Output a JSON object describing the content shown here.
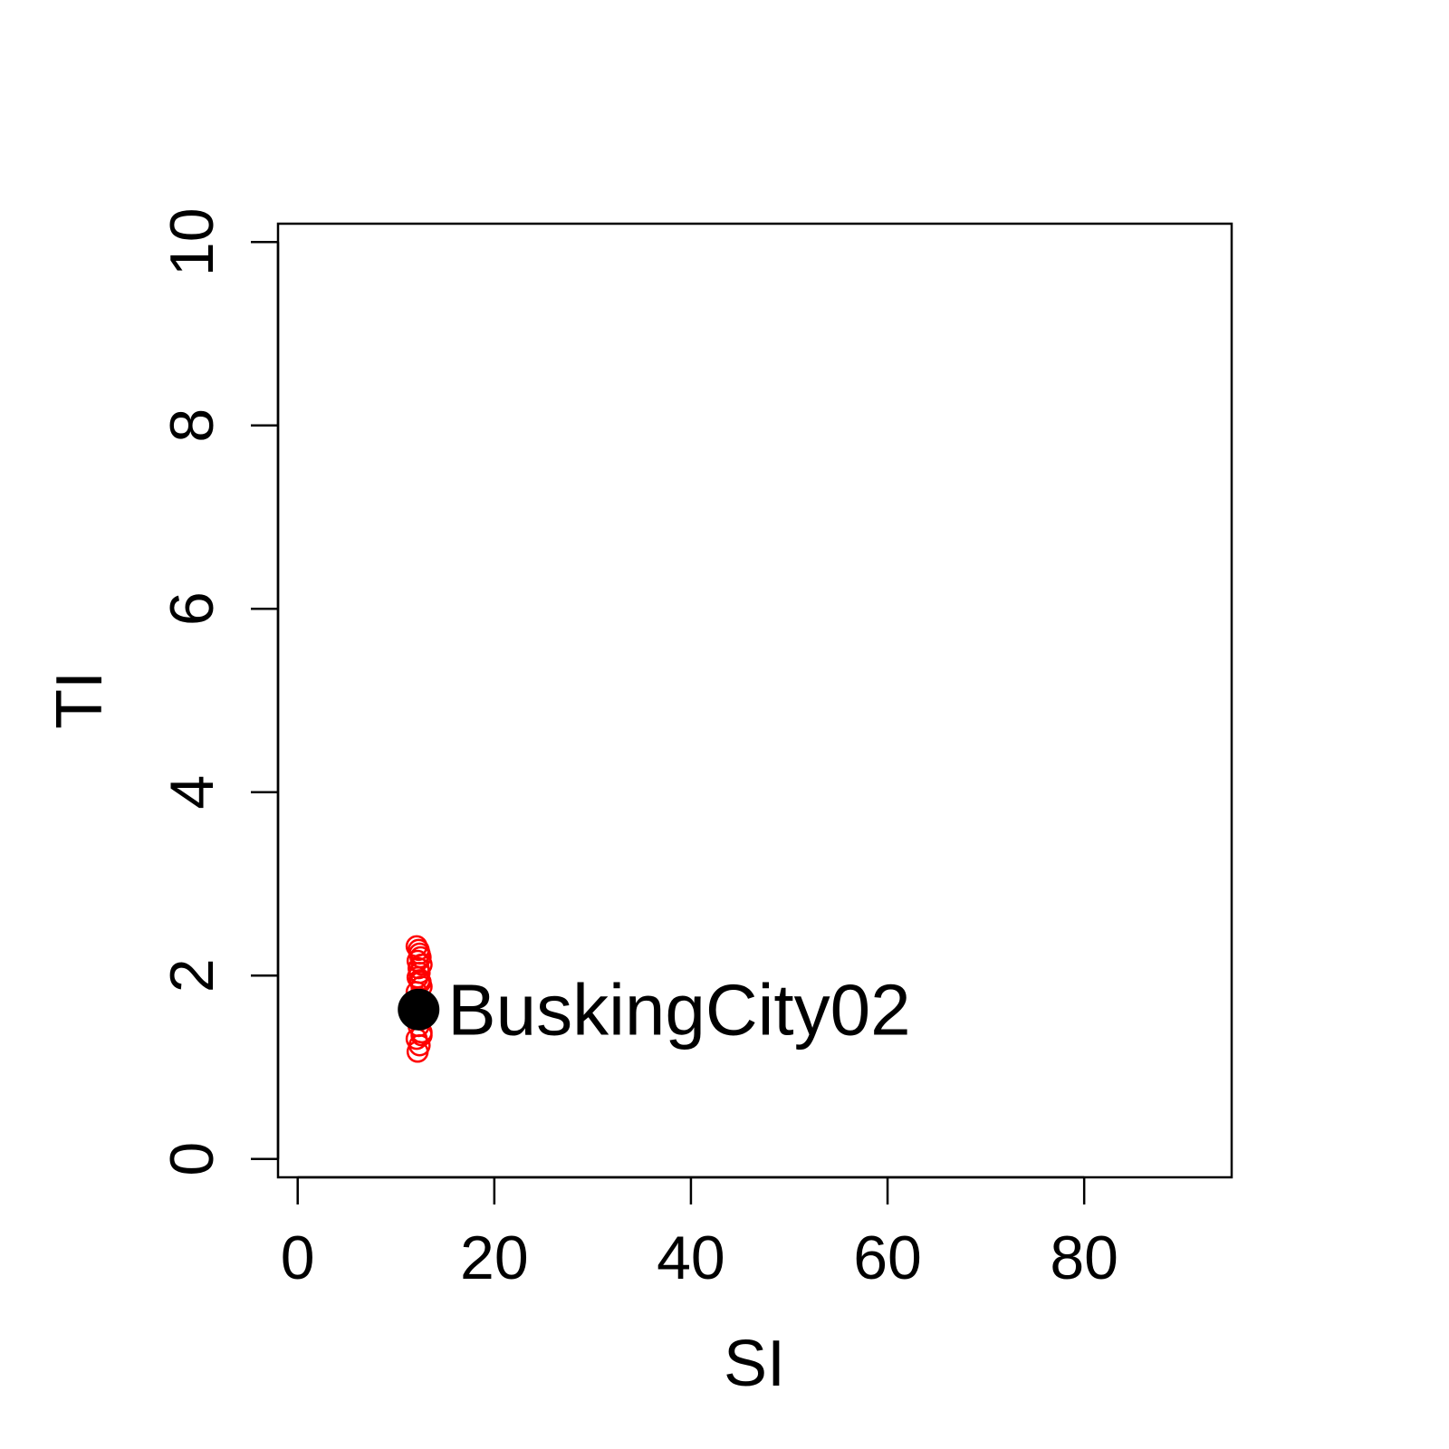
{
  "chart_data": {
    "type": "scatter",
    "title": "",
    "xlabel": "SI",
    "ylabel": "TI",
    "xlim": [
      -2,
      95
    ],
    "ylim": [
      -0.2,
      10.2
    ],
    "x_ticks": [
      "0",
      "20",
      "40",
      "60",
      "80"
    ],
    "y_ticks": [
      "0",
      "2",
      "4",
      "6",
      "8",
      "10"
    ],
    "grid": false,
    "series": [
      {
        "style": "open-circle",
        "color": "#ff0000",
        "x": [
          12.2,
          12.4,
          12.1,
          12.6,
          12.3,
          12.5,
          12.2,
          12.7,
          12.4,
          12.3,
          12.1,
          12.6,
          12.5,
          12.2,
          12.4,
          12.3,
          12.6,
          12.2,
          12.5,
          12.4,
          12.3,
          12.1,
          12.6,
          12.4
        ],
        "y": [
          1.17,
          1.24,
          1.31,
          1.38,
          1.45,
          1.52,
          1.58,
          1.64,
          1.7,
          1.76,
          1.82,
          1.88,
          1.93,
          1.98,
          2.03,
          2.08,
          2.12,
          2.16,
          2.2,
          2.24,
          2.28,
          2.32,
          1.35,
          1.95
        ]
      },
      {
        "style": "filled-circle",
        "color": "#000000",
        "x": [
          12.3
        ],
        "y": [
          1.63
        ]
      }
    ],
    "annotations": [
      {
        "text": "BuskingCity02",
        "x": 12.3,
        "y": 1.63
      }
    ]
  }
}
